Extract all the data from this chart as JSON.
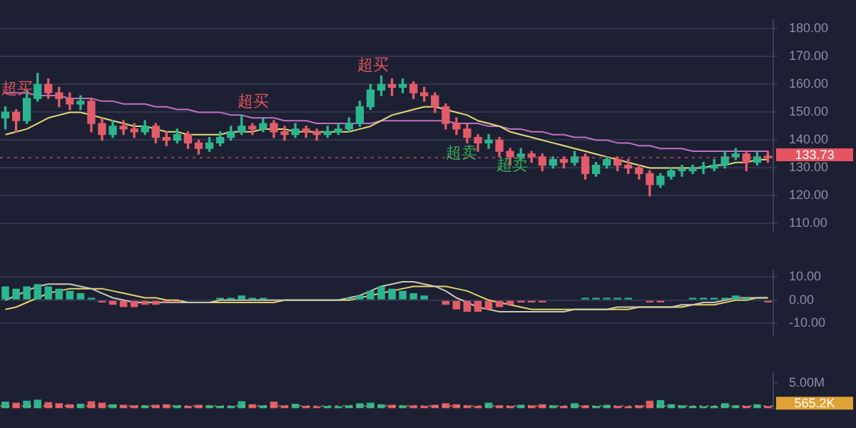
{
  "chart_data": [
    {
      "type": "candlestick",
      "tick_labels": "y",
      "grid": "y",
      "categories": [
        null,
        null,
        null,
        null,
        null,
        null,
        null,
        null,
        null,
        null,
        null,
        null,
        null,
        null,
        null,
        null,
        null,
        null,
        null,
        null,
        null,
        null,
        null,
        null,
        null,
        null,
        null,
        null,
        null,
        null,
        null,
        null,
        null,
        null,
        null,
        null,
        null,
        null,
        null,
        null,
        null,
        null,
        null,
        null,
        null,
        null,
        null,
        null,
        null,
        null,
        null,
        null,
        null,
        null,
        null,
        null,
        null,
        null,
        null,
        null,
        null,
        null,
        null,
        null,
        null,
        null,
        null,
        null,
        null,
        null,
        null,
        null
      ],
      "ohlc": [
        [
          148,
          152,
          144,
          150
        ],
        [
          150,
          151,
          143,
          147
        ],
        [
          147,
          158,
          146,
          155
        ],
        [
          155,
          164,
          154,
          160
        ],
        [
          160,
          162,
          155,
          157
        ],
        [
          157,
          159,
          152,
          155
        ],
        [
          155,
          157,
          151,
          153
        ],
        [
          153,
          156,
          151,
          154
        ],
        [
          154,
          155,
          143,
          146
        ],
        [
          146,
          148,
          140,
          142
        ],
        [
          142,
          147,
          141,
          145
        ],
        [
          145,
          147,
          142,
          144
        ],
        [
          144,
          146,
          141,
          143
        ],
        [
          143,
          147,
          142,
          145
        ],
        [
          145,
          146,
          139,
          141
        ],
        [
          141,
          143,
          138,
          140
        ],
        [
          140,
          144,
          139,
          142
        ],
        [
          142,
          143,
          137,
          139
        ],
        [
          139,
          140,
          135,
          137
        ],
        [
          137,
          141,
          136,
          139
        ],
        [
          139,
          143,
          138,
          141
        ],
        [
          141,
          145,
          140,
          143
        ],
        [
          143,
          149,
          142,
          145
        ],
        [
          145,
          146,
          142,
          144
        ],
        [
          144,
          148,
          143,
          146
        ],
        [
          146,
          147,
          141,
          143
        ],
        [
          143,
          145,
          140,
          142
        ],
        [
          142,
          146,
          141,
          144
        ],
        [
          144,
          145,
          141,
          143
        ],
        [
          143,
          144,
          140,
          142
        ],
        [
          142,
          145,
          141,
          143
        ],
        [
          143,
          146,
          142,
          144
        ],
        [
          144,
          148,
          143,
          146
        ],
        [
          146,
          154,
          145,
          152
        ],
        [
          152,
          160,
          151,
          158
        ],
        [
          158,
          163,
          156,
          160
        ],
        [
          160,
          162,
          156,
          159
        ],
        [
          159,
          162,
          157,
          160
        ],
        [
          160,
          161,
          155,
          157
        ],
        [
          157,
          159,
          154,
          156
        ],
        [
          156,
          157,
          150,
          152
        ],
        [
          152,
          153,
          144,
          146
        ],
        [
          146,
          148,
          142,
          144
        ],
        [
          144,
          146,
          139,
          141
        ],
        [
          141,
          142,
          136,
          139
        ],
        [
          139,
          142,
          137,
          140
        ],
        [
          140,
          141,
          134,
          136
        ],
        [
          136,
          137,
          131,
          134
        ],
        [
          134,
          137,
          133,
          135
        ],
        [
          135,
          136,
          132,
          134
        ],
        [
          134,
          135,
          129,
          131
        ],
        [
          131,
          134,
          130,
          133
        ],
        [
          133,
          134,
          130,
          132
        ],
        [
          132,
          136,
          131,
          134
        ],
        [
          134,
          135,
          126,
          128
        ],
        [
          128,
          132,
          127,
          131
        ],
        [
          131,
          134,
          130,
          133
        ],
        [
          133,
          134,
          129,
          131
        ],
        [
          131,
          133,
          128,
          130
        ],
        [
          130,
          131,
          126,
          128
        ],
        [
          128,
          129,
          120,
          124
        ],
        [
          124,
          128,
          123,
          127
        ],
        [
          127,
          130,
          126,
          129
        ],
        [
          129,
          131,
          127,
          129
        ],
        [
          129,
          131,
          128,
          130
        ],
        [
          130,
          132,
          128,
          130
        ],
        [
          130,
          133,
          129,
          131
        ],
        [
          131,
          136,
          130,
          134
        ],
        [
          134,
          137,
          133,
          135
        ],
        [
          135,
          136,
          129,
          132
        ],
        [
          132,
          136,
          131,
          134
        ],
        [
          134,
          136,
          132,
          133.73
        ]
      ],
      "colors": [
        "#2bb68f",
        "#e25c6a",
        "#2bb68f",
        "#2bb68f",
        "#e25c6a",
        "#e25c6a",
        "#e25c6a",
        "#2bb68f",
        "#e25c6a",
        "#e25c6a",
        "#2bb68f",
        "#e25c6a",
        "#e25c6a",
        "#2bb68f",
        "#e25c6a",
        "#e25c6a",
        "#2bb68f",
        "#e25c6a",
        "#e25c6a",
        "#2bb68f",
        "#2bb68f",
        "#2bb68f",
        "#2bb68f",
        "#e25c6a",
        "#2bb68f",
        "#e25c6a",
        "#e25c6a",
        "#2bb68f",
        "#e25c6a",
        "#e25c6a",
        "#2bb68f",
        "#2bb68f",
        "#2bb68f",
        "#2bb68f",
        "#2bb68f",
        "#2bb68f",
        "#e25c6a",
        "#2bb68f",
        "#e25c6a",
        "#e25c6a",
        "#e25c6a",
        "#e25c6a",
        "#e25c6a",
        "#e25c6a",
        "#e25c6a",
        "#2bb68f",
        "#e25c6a",
        "#e25c6a",
        "#2bb68f",
        "#e25c6a",
        "#e25c6a",
        "#2bb68f",
        "#e25c6a",
        "#2bb68f",
        "#e25c6a",
        "#2bb68f",
        "#2bb68f",
        "#e25c6a",
        "#e25c6a",
        "#e25c6a",
        "#e25c6a",
        "#2bb68f",
        "#2bb68f",
        "#2bb68f",
        "#2bb68f",
        "#2bb68f",
        "#2bb68f",
        "#2bb68f",
        "#2bb68f",
        "#e25c6a",
        "#2bb68f",
        "#e25c6a"
      ],
      "series": [
        {
          "type": "line",
          "color": "#e3dc78",
          "values": [
            142,
            143,
            144,
            146,
            148,
            149,
            150,
            150,
            149,
            148,
            147,
            146,
            145,
            145,
            144,
            143,
            143,
            142,
            142,
            142,
            142,
            143,
            143,
            143,
            144,
            144,
            144,
            143,
            143,
            143,
            143,
            143,
            143,
            144,
            145,
            147,
            149,
            150,
            151,
            152,
            152,
            151,
            150,
            149,
            147,
            146,
            145,
            143,
            142,
            141,
            140,
            139,
            138,
            137,
            136,
            135,
            134,
            133,
            132,
            131,
            130,
            130,
            130,
            130,
            130,
            130,
            131,
            131,
            132,
            132,
            133,
            133
          ]
        },
        {
          "type": "line",
          "color": "#c06fc8",
          "values": [
            157,
            157,
            157,
            156,
            156,
            156,
            155,
            155,
            155,
            154,
            154,
            153,
            153,
            153,
            152,
            152,
            151,
            151,
            150,
            150,
            150,
            149,
            149,
            148,
            148,
            148,
            147,
            147,
            147,
            146,
            146,
            146,
            146,
            146,
            146,
            147,
            147,
            147,
            147,
            147,
            147,
            147,
            146,
            146,
            146,
            145,
            145,
            144,
            144,
            143,
            143,
            142,
            142,
            141,
            141,
            140,
            140,
            139,
            139,
            138,
            138,
            137,
            137,
            137,
            136,
            136,
            136,
            136,
            136,
            136,
            136,
            136
          ]
        }
      ],
      "ylim": [
        107,
        183.5
      ],
      "yticks": [
        {
          "value": 110,
          "label": "110.00"
        },
        {
          "value": 120,
          "label": "120.00"
        },
        {
          "value": 130,
          "label": "130.00"
        },
        {
          "value": 140,
          "label": "140.00"
        },
        {
          "value": 150,
          "label": "150.00"
        },
        {
          "value": 160,
          "label": "160.00"
        },
        {
          "value": 170,
          "label": "170.00"
        },
        {
          "value": 180,
          "label": "180.00"
        }
      ],
      "ref_lines": [
        {
          "axis": "y",
          "value": 133.73,
          "label": "133.73",
          "color": "#e5545f"
        }
      ],
      "annotations": [
        "超买",
        "超买",
        "超买",
        "超卖",
        "超卖"
      ]
    },
    {
      "type": "bar",
      "tick_labels": "y",
      "grid": "y",
      "categories": [
        null,
        null,
        null,
        null,
        null,
        null,
        null,
        null,
        null,
        null,
        null,
        null,
        null,
        null,
        null,
        null,
        null,
        null,
        null,
        null,
        null,
        null,
        null,
        null,
        null,
        null,
        null,
        null,
        null,
        null,
        null,
        null,
        null,
        null,
        null,
        null,
        null,
        null,
        null,
        null,
        null,
        null,
        null,
        null,
        null,
        null,
        null,
        null,
        null,
        null,
        null,
        null,
        null,
        null,
        null,
        null,
        null,
        null,
        null,
        null,
        null,
        null,
        null,
        null,
        null,
        null,
        null,
        null,
        null,
        null,
        null,
        null
      ],
      "series": [
        {
          "type": "bar",
          "values": [
            6,
            5,
            6,
            7,
            6,
            5,
            4,
            3,
            1,
            -1,
            -2,
            -3,
            -3,
            -2,
            -2,
            -1,
            -1,
            0,
            0,
            0,
            1,
            1,
            2,
            1,
            1,
            0,
            0,
            0,
            0,
            0,
            0,
            0,
            1,
            2,
            4,
            6,
            5,
            4,
            3,
            2,
            0,
            -2,
            -4,
            -5,
            -5,
            -4,
            -3,
            -2,
            -1,
            -1,
            -1,
            0,
            0,
            0,
            1,
            1,
            1,
            1,
            1,
            0,
            -1,
            -1,
            0,
            0,
            1,
            1,
            1,
            1,
            2,
            1,
            0,
            -1
          ],
          "colors": [
            "#2bb68f",
            "#2bb68f",
            "#2bb68f",
            "#2bb68f",
            "#2bb68f",
            "#2bb68f",
            "#2bb68f",
            "#2bb68f",
            "#2bb68f",
            "#e25c6a",
            "#e25c6a",
            "#e25c6a",
            "#e25c6a",
            "#e25c6a",
            "#e25c6a",
            "#e25c6a",
            "#e25c6a",
            "#2bb68f",
            "#2bb68f",
            "#2bb68f",
            "#2bb68f",
            "#2bb68f",
            "#2bb68f",
            "#2bb68f",
            "#2bb68f",
            "#2bb68f",
            "#2bb68f",
            "#2bb68f",
            "#2bb68f",
            "#2bb68f",
            "#2bb68f",
            "#2bb68f",
            "#2bb68f",
            "#2bb68f",
            "#2bb68f",
            "#2bb68f",
            "#2bb68f",
            "#2bb68f",
            "#2bb68f",
            "#2bb68f",
            "#2bb68f",
            "#e25c6a",
            "#e25c6a",
            "#e25c6a",
            "#e25c6a",
            "#e25c6a",
            "#e25c6a",
            "#e25c6a",
            "#e25c6a",
            "#e25c6a",
            "#e25c6a",
            "#2bb68f",
            "#2bb68f",
            "#2bb68f",
            "#2bb68f",
            "#2bb68f",
            "#2bb68f",
            "#2bb68f",
            "#2bb68f",
            "#2bb68f",
            "#e25c6a",
            "#e25c6a",
            "#2bb68f",
            "#2bb68f",
            "#2bb68f",
            "#2bb68f",
            "#2bb68f",
            "#2bb68f",
            "#2bb68f",
            "#2bb68f",
            "#2bb68f",
            "#e25c6a"
          ]
        },
        {
          "type": "line",
          "color": "#c9c9b4",
          "values": [
            0,
            2,
            4,
            6,
            7,
            7,
            7,
            6,
            5,
            3,
            1,
            0,
            -1,
            -1,
            -1,
            -1,
            -1,
            -1,
            -1,
            -1,
            0,
            0,
            0,
            0,
            0,
            0,
            0,
            0,
            0,
            0,
            0,
            0,
            1,
            2,
            4,
            6,
            7,
            8,
            8,
            7,
            6,
            4,
            1,
            -1,
            -3,
            -4,
            -5,
            -5,
            -5,
            -5,
            -5,
            -5,
            -5,
            -4,
            -4,
            -4,
            -4,
            -3,
            -3,
            -3,
            -3,
            -3,
            -3,
            -2,
            -2,
            -1,
            -1,
            0,
            1,
            1,
            1,
            1
          ]
        },
        {
          "type": "line",
          "color": "#e3d36a",
          "values": [
            -4,
            -3,
            -1,
            1,
            3,
            4,
            5,
            5,
            5,
            5,
            4,
            3,
            2,
            1,
            1,
            0,
            0,
            -1,
            -1,
            -1,
            -1,
            -1,
            -1,
            -1,
            -1,
            -1,
            0,
            0,
            0,
            0,
            0,
            0,
            0,
            1,
            2,
            3,
            4,
            5,
            6,
            6,
            6,
            6,
            5,
            4,
            2,
            0,
            -1,
            -2,
            -3,
            -4,
            -4,
            -4,
            -4,
            -4,
            -4,
            -4,
            -4,
            -4,
            -4,
            -3,
            -3,
            -3,
            -3,
            -3,
            -2,
            -2,
            -2,
            -1,
            0,
            0,
            1,
            1
          ]
        }
      ],
      "ylim": [
        -15,
        13
      ],
      "yticks": [
        {
          "value": -10,
          "label": "-10.00"
        },
        {
          "value": 0,
          "label": "0.00"
        },
        {
          "value": 10,
          "label": "10.00"
        }
      ]
    },
    {
      "type": "bar",
      "tick_labels": "y",
      "categories": [
        null,
        null,
        null,
        null,
        null,
        null,
        null,
        null,
        null,
        null,
        null,
        null,
        null,
        null,
        null,
        null,
        null,
        null,
        null,
        null,
        null,
        null,
        null,
        null,
        null,
        null,
        null,
        null,
        null,
        null,
        null,
        null,
        null,
        null,
        null,
        null,
        null,
        null,
        null,
        null,
        null,
        null,
        null,
        null,
        null,
        null,
        null,
        null,
        null,
        null,
        null,
        null,
        null,
        null,
        null,
        null,
        null,
        null,
        null,
        null,
        null,
        null,
        null,
        null,
        null,
        null,
        null,
        null,
        null,
        null,
        null,
        null
      ],
      "values": [
        1400000,
        1200000,
        1600000,
        1800000,
        1300000,
        1100000,
        900000,
        1000000,
        1500000,
        1200000,
        900000,
        800000,
        700000,
        700000,
        800000,
        900000,
        700000,
        600000,
        800000,
        700000,
        600000,
        600000,
        1500000,
        900000,
        700000,
        1400000,
        700000,
        1000000,
        600000,
        500000,
        600000,
        500000,
        700000,
        1100000,
        1200000,
        900000,
        800000,
        700000,
        700000,
        600000,
        800000,
        1100000,
        900000,
        700000,
        600000,
        1200000,
        700000,
        600000,
        800000,
        700000,
        900000,
        700000,
        600000,
        1100000,
        700000,
        600000,
        800000,
        600000,
        500000,
        700000,
        1600000,
        1700000,
        900000,
        700000,
        600000,
        500000,
        600000,
        1100000,
        700000,
        600000,
        900000,
        565200
      ],
      "colors": [
        "#2bb68f",
        "#e25c6a",
        "#2bb68f",
        "#2bb68f",
        "#e25c6a",
        "#e25c6a",
        "#e25c6a",
        "#2bb68f",
        "#e25c6a",
        "#e25c6a",
        "#2bb68f",
        "#e25c6a",
        "#e25c6a",
        "#2bb68f",
        "#e25c6a",
        "#e25c6a",
        "#2bb68f",
        "#e25c6a",
        "#e25c6a",
        "#2bb68f",
        "#2bb68f",
        "#2bb68f",
        "#2bb68f",
        "#e25c6a",
        "#2bb68f",
        "#e25c6a",
        "#e25c6a",
        "#2bb68f",
        "#e25c6a",
        "#e25c6a",
        "#2bb68f",
        "#2bb68f",
        "#2bb68f",
        "#2bb68f",
        "#2bb68f",
        "#2bb68f",
        "#e25c6a",
        "#2bb68f",
        "#e25c6a",
        "#e25c6a",
        "#e25c6a",
        "#e25c6a",
        "#e25c6a",
        "#e25c6a",
        "#e25c6a",
        "#2bb68f",
        "#e25c6a",
        "#e25c6a",
        "#2bb68f",
        "#e25c6a",
        "#e25c6a",
        "#2bb68f",
        "#e25c6a",
        "#2bb68f",
        "#e25c6a",
        "#2bb68f",
        "#2bb68f",
        "#e25c6a",
        "#e25c6a",
        "#e25c6a",
        "#e25c6a",
        "#2bb68f",
        "#2bb68f",
        "#2bb68f",
        "#2bb68f",
        "#2bb68f",
        "#2bb68f",
        "#2bb68f",
        "#2bb68f",
        "#e25c6a",
        "#2bb68f",
        "#e25c6a"
      ],
      "ylim": [
        0,
        7000000
      ],
      "yticks": [
        {
          "value": 0,
          "label": null
        },
        {
          "value": 5000000,
          "label": "5.00M"
        }
      ],
      "ref_lines": [
        {
          "axis": "y",
          "value": 565200,
          "label": "565.2K",
          "color": "#e0a234"
        }
      ]
    }
  ]
}
